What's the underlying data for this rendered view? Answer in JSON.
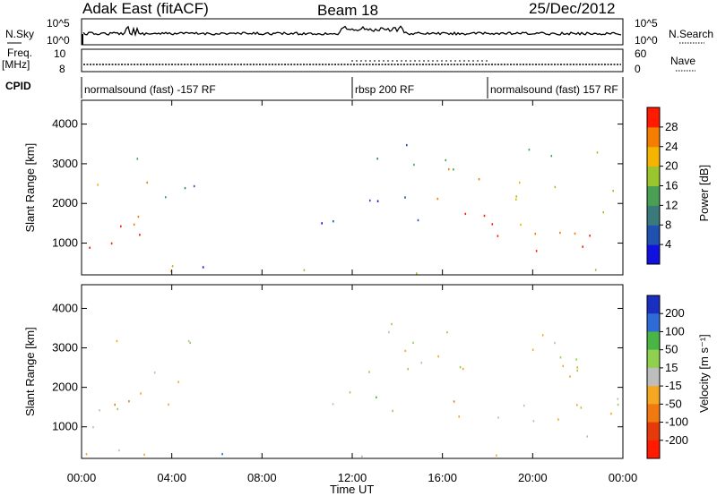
{
  "header": {
    "station": "Adak East (fitACF)",
    "beam": "Beam 18",
    "date": "25/Dec/2012"
  },
  "labels": {
    "nsky": "N.Sky",
    "nsearch": "N.Search",
    "freq": "Freq.",
    "mhz": "[MHz]",
    "nave": "Nave",
    "cpid": "CPID",
    "slant_range": "Slant Range [km]",
    "time": "Time UT",
    "power_label": "Power [dB]",
    "velocity_label": "Velocity [m s⁻¹]"
  },
  "noise_panel": {
    "left_ticks": [
      "10^5",
      "10^0"
    ],
    "right_ticks": [
      "10^5",
      "10^0"
    ]
  },
  "freq_panel": {
    "left_ticks": [
      "10",
      "8"
    ],
    "right_ticks": [
      "60",
      "0"
    ]
  },
  "cpid_segments": [
    {
      "label": "normalsound (fast) -157 RF",
      "start_h": 0,
      "end_h": 12
    },
    {
      "label": "rbsp 200 RF",
      "start_h": 12,
      "end_h": 18
    },
    {
      "label": "normalsound (fast) 157 RF",
      "start_h": 18,
      "end_h": 24
    }
  ],
  "chart_data": [
    {
      "type": "heatmap",
      "name": "power",
      "ylabel": "Slant Range [km]",
      "ylim": [
        200,
        4600
      ],
      "y_ticks": [
        "1000",
        "2000",
        "3000",
        "4000"
      ],
      "y_tick_values": [
        1000,
        2000,
        3000,
        4000
      ],
      "xlim": [
        0,
        24
      ],
      "colorbar": {
        "label": "Power [dB]",
        "ticks": [
          "4",
          "8",
          "12",
          "16",
          "20",
          "24",
          "28"
        ],
        "colors": [
          "#1010e0",
          "#2050b0",
          "#3a7a7a",
          "#4b9f55",
          "#9bc52f",
          "#f4b400",
          "#f57d00",
          "#ff1a00"
        ]
      }
    },
    {
      "type": "heatmap",
      "name": "velocity",
      "ylabel": "Slant Range [km]",
      "ylim": [
        200,
        4600
      ],
      "y_ticks": [
        "1000",
        "2000",
        "3000",
        "4000"
      ],
      "y_tick_values": [
        1000,
        2000,
        3000,
        4000
      ],
      "xlim": [
        0,
        24
      ],
      "xlabel": "Time UT",
      "x_ticks": [
        "00:00",
        "04:00",
        "08:00",
        "12:00",
        "16:00",
        "20:00",
        "00:00"
      ],
      "x_tick_values": [
        0,
        4,
        8,
        12,
        16,
        20,
        24
      ],
      "colorbar": {
        "label": "Velocity [m s⁻¹]",
        "ticks": [
          "200",
          "100",
          "50",
          "15",
          "-15",
          "-50",
          "-100",
          "-200"
        ],
        "colors": [
          "#1a2fbf",
          "#2e6bd6",
          "#4ab545",
          "#8fd14f",
          "#bdbdbd",
          "#f5a623",
          "#f07a10",
          "#e63a0a",
          "#ff1a00"
        ]
      }
    }
  ]
}
